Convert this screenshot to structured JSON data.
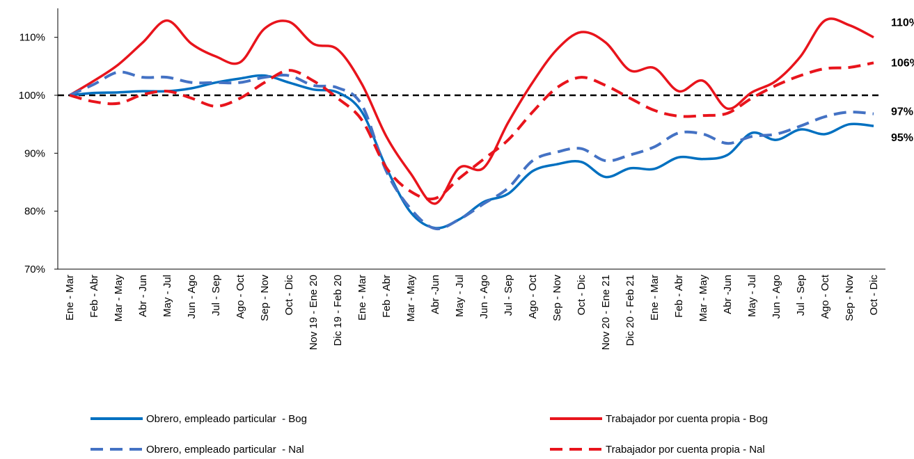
{
  "chart_data": {
    "type": "line",
    "categories": [
      "Ene - Mar",
      "Feb - Abr",
      "Mar - May",
      "Abr - Jun",
      "May - Jul",
      "Jun - Ago",
      "Jul - Sep",
      "Ago - Oct",
      "Sep - Nov",
      "Oct - Dic",
      "Nov 19 - Ene 20",
      "Dic 19 - Feb 20",
      "Ene - Mar",
      "Feb - Abr",
      "Mar - May",
      "Abr -Jun",
      "May - Jul",
      "Jun - Ago",
      "Jul - Sep",
      "Ago - Oct",
      "Sep - Nov",
      "Oct - Dic",
      "Nov 20 - Ene 21",
      "Dic 20 - Feb 21",
      "Ene - Mar",
      "Feb - Abr",
      "Mar - May",
      "Abr -Jun",
      "May - Jul",
      "Jun - Ago",
      "Jul - Sep",
      "Ago - Oct",
      "Sep - Nov",
      "Oct - Dic"
    ],
    "series": [
      {
        "name": "Obrero, empleado particular  - Bog",
        "color": "#0070c0",
        "dashed": false,
        "values": [
          100,
          100.4,
          100.5,
          100.7,
          100.7,
          101.2,
          102.2,
          102.9,
          103.4,
          102.2,
          101,
          100.5,
          97.1,
          87.5,
          79.8,
          77.1,
          78.6,
          81.6,
          83,
          86.9,
          88.1,
          88.5,
          85.9,
          87.4,
          87.3,
          89.3,
          89,
          89.7,
          93.5,
          92.3,
          94.1,
          93.3,
          95,
          94.7
        ],
        "value_labels": [
          null,
          null,
          null,
          null,
          null,
          null,
          null,
          null,
          null,
          null,
          null,
          null,
          null,
          null,
          null,
          null,
          null,
          null,
          null,
          null,
          null,
          null,
          null,
          null,
          null,
          null,
          null,
          null,
          null,
          null,
          null,
          null,
          null,
          "95%"
        ]
      },
      {
        "name": "Trabajador por cuenta propia - Bog",
        "color": "#e8141c",
        "dashed": false,
        "values": [
          100,
          102.5,
          105.3,
          109.1,
          112.9,
          108.9,
          106.7,
          105.7,
          111.5,
          112.7,
          108.9,
          107.9,
          101.9,
          92.9,
          86.5,
          81.3,
          87.5,
          87.5,
          95.3,
          102.2,
          107.9,
          110.9,
          109.1,
          104.3,
          104.7,
          100.7,
          102.5,
          97.7,
          100.5,
          102.5,
          106.7,
          112.9,
          112.1,
          110
        ],
        "value_labels": [
          null,
          null,
          null,
          null,
          null,
          null,
          null,
          null,
          null,
          null,
          null,
          null,
          null,
          null,
          null,
          null,
          null,
          null,
          null,
          null,
          null,
          null,
          null,
          null,
          null,
          null,
          null,
          null,
          null,
          null,
          null,
          null,
          null,
          "110%"
        ]
      },
      {
        "name": "Obrero, empleado particular  - Nal",
        "color": "#4472c4",
        "dashed": true,
        "values": [
          100,
          101.9,
          104,
          103.1,
          103.1,
          102.2,
          102.2,
          102.2,
          103.1,
          103.4,
          101.7,
          101.3,
          98.3,
          86.9,
          80.4,
          77,
          78.6,
          81.3,
          84,
          88.7,
          90.2,
          90.8,
          88.7,
          89.7,
          91.1,
          93.5,
          93.3,
          91.7,
          92.9,
          93.3,
          94.7,
          96.3,
          97.1,
          96.8
        ],
        "value_labels": [
          null,
          null,
          null,
          null,
          null,
          null,
          null,
          null,
          null,
          null,
          null,
          null,
          null,
          null,
          null,
          null,
          null,
          null,
          null,
          null,
          null,
          null,
          null,
          null,
          null,
          null,
          null,
          null,
          null,
          null,
          null,
          null,
          null,
          "97%"
        ]
      },
      {
        "name": "Trabajador por cuenta propia - Nal",
        "color": "#e8141c",
        "dashed": true,
        "values": [
          100,
          98.9,
          98.6,
          100.1,
          100.7,
          99.5,
          98.1,
          99.5,
          102.2,
          104.3,
          102.5,
          99.5,
          95.7,
          87.5,
          83.4,
          82.2,
          85.7,
          89,
          92.3,
          97.1,
          101.3,
          103.1,
          101.7,
          99.5,
          97.4,
          96.4,
          96.5,
          96.9,
          99.5,
          101.7,
          103.4,
          104.6,
          104.8,
          105.6
        ],
        "value_labels": [
          null,
          null,
          null,
          null,
          null,
          null,
          null,
          null,
          null,
          null,
          null,
          null,
          null,
          null,
          null,
          null,
          null,
          null,
          null,
          null,
          null,
          null,
          null,
          null,
          null,
          null,
          null,
          null,
          null,
          null,
          null,
          null,
          null,
          "106%"
        ]
      }
    ],
    "ylim": [
      70,
      115
    ],
    "yticks": [
      {
        "value": 70,
        "label": "70%"
      },
      {
        "value": 80,
        "label": "80%"
      },
      {
        "value": 90,
        "label": "90%"
      },
      {
        "value": 100,
        "label": "100%"
      },
      {
        "value": 110,
        "label": "110%"
      }
    ],
    "reference_line": 100,
    "grid": false
  }
}
